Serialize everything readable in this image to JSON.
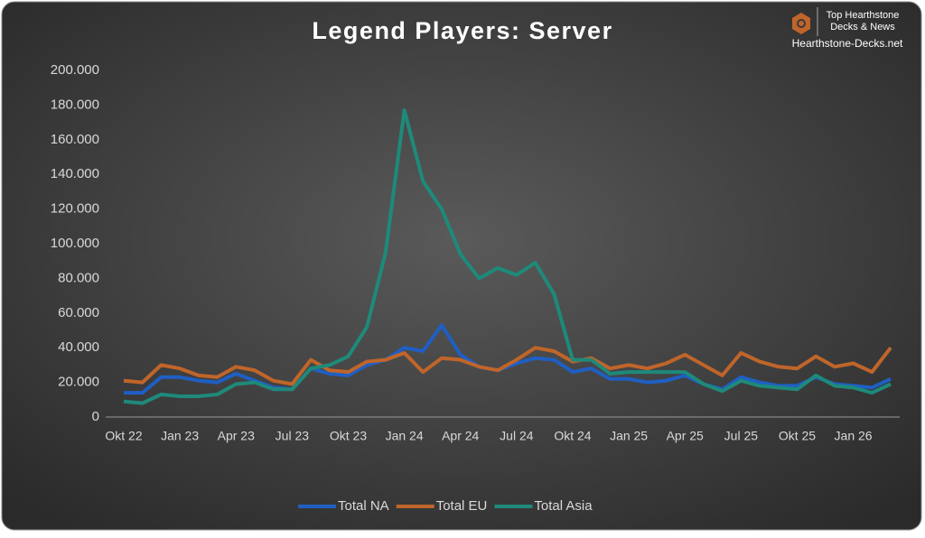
{
  "chart_data": {
    "type": "line",
    "title": "Legend Players: Server",
    "categories": [
      "Okt 22",
      null,
      null,
      "Jan 23",
      null,
      null,
      "Apr 23",
      null,
      null,
      "Jul 23",
      null,
      null,
      "Okt 23",
      null,
      null,
      "Jan 24",
      null,
      null,
      "Apr 24",
      null,
      null,
      "Jul 24",
      null,
      null,
      "Okt 24",
      null,
      null,
      "Jan 25",
      null,
      null,
      "Apr 25",
      null,
      null,
      "Jul 25",
      null,
      null,
      "Okt 25",
      null,
      null,
      "Jan 26",
      null,
      null
    ],
    "series": [
      {
        "name": "Total NA",
        "color": "#1f5fc4",
        "values": [
          14000,
          14000,
          23000,
          23000,
          21000,
          20000,
          25000,
          21000,
          17000,
          16000,
          28000,
          25000,
          24000,
          30000,
          33000,
          40000,
          38000,
          53000,
          36000,
          29000,
          27000,
          31000,
          34000,
          33000,
          26000,
          28000,
          22000,
          22000,
          20000,
          21000,
          24000,
          19000,
          16000,
          23000,
          20000,
          18000,
          18000,
          23000,
          19000,
          18000,
          17000,
          22000
        ]
      },
      {
        "name": "Total EU",
        "color": "#c0652a",
        "values": [
          21000,
          20000,
          30000,
          28000,
          24000,
          23000,
          29000,
          27000,
          21000,
          19000,
          33000,
          27000,
          26000,
          32000,
          33000,
          37000,
          26000,
          34000,
          33000,
          29000,
          27000,
          33000,
          40000,
          38000,
          32000,
          34000,
          28000,
          30000,
          28000,
          31000,
          36000,
          30000,
          24000,
          37000,
          32000,
          29000,
          28000,
          35000,
          29000,
          31000,
          26000,
          40000
        ]
      },
      {
        "name": "Total Asia",
        "color": "#1e8a7a",
        "values": [
          9000,
          8000,
          13000,
          12000,
          12000,
          13000,
          19000,
          20000,
          16000,
          16000,
          28000,
          30000,
          35000,
          52000,
          95000,
          177000,
          136000,
          120000,
          94000,
          80000,
          86000,
          82000,
          89000,
          71000,
          33000,
          33000,
          25000,
          26000,
          26000,
          26000,
          26000,
          19000,
          15000,
          21000,
          18000,
          17000,
          16000,
          24000,
          18000,
          17000,
          14000,
          19000
        ]
      }
    ],
    "ylim": [
      0,
      200000
    ],
    "yticks": [
      0,
      {
        "value": 20000,
        "label": "20.000"
      },
      {
        "value": 40000,
        "label": "40.000"
      },
      {
        "value": 60000,
        "label": "60.000"
      },
      {
        "value": 80000,
        "label": "80.000"
      },
      {
        "value": 100000,
        "label": "100.000"
      },
      {
        "value": 120000,
        "label": "120.000"
      },
      {
        "value": 140000,
        "label": "140.000"
      },
      {
        "value": 160000,
        "label": "160.000"
      },
      {
        "value": 180000,
        "label": "180.000"
      },
      {
        "value": 200000,
        "label": "200.000"
      }
    ],
    "grid": false,
    "legend": "bottom"
  },
  "logo": {
    "line1": "Top Hearthstone",
    "line2": "Decks & News",
    "site": "Hearthstone-Decks.net"
  }
}
